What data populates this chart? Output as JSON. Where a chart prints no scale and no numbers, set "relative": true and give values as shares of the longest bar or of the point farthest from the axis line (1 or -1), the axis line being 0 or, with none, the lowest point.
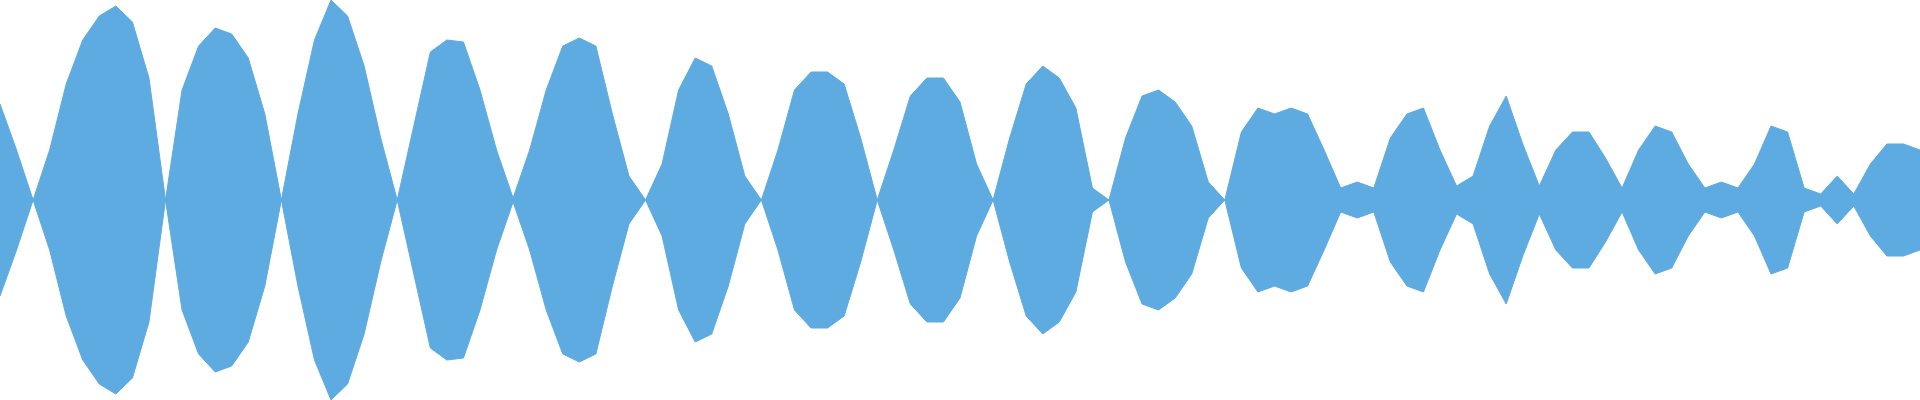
{
  "chart_data": {
    "type": "area",
    "relative": true,
    "categories": [
      null,
      null,
      null,
      null,
      null,
      null,
      null,
      null,
      null,
      null,
      null,
      null,
      null,
      null,
      null,
      null,
      null,
      null,
      null,
      null,
      null,
      null,
      null,
      null,
      null,
      null,
      null,
      null,
      null,
      null,
      null,
      null,
      null,
      null,
      null,
      null,
      null,
      null,
      null,
      null,
      null,
      null,
      null,
      null,
      null,
      null,
      null,
      null,
      null,
      null,
      null,
      null,
      null,
      null,
      null,
      null,
      null,
      null,
      null,
      null,
      null,
      null,
      null,
      null,
      null,
      null,
      null,
      null,
      null,
      null,
      null,
      null,
      null,
      null,
      null,
      null,
      null,
      null,
      null,
      null,
      null,
      null,
      null,
      null,
      null,
      null,
      null,
      null,
      null,
      null,
      null,
      null,
      null,
      null,
      null,
      null,
      null,
      null,
      null,
      null,
      null,
      null,
      null,
      null,
      null,
      null,
      null,
      null,
      null,
      null,
      null,
      null,
      null,
      null,
      null,
      null,
      null
    ],
    "series": [
      {
        "color": "#5dabe1",
        "values": [
          0.48,
          0.25,
          0,
          0.25,
          0.58,
          0.8,
          0.92,
          0.97,
          0.89,
          0.61,
          0,
          0.55,
          0.77,
          0.86,
          0.83,
          0.71,
          0.43,
          0,
          0.43,
          0.8,
          1,
          0.92,
          0.67,
          0.31,
          0,
          0.37,
          0.74,
          0.8,
          0.79,
          0.55,
          0.25,
          0.01,
          0.25,
          0.55,
          0.77,
          0.81,
          0.77,
          0.43,
          0.12,
          0,
          0.18,
          0.55,
          0.71,
          0.67,
          0.43,
          0.12,
          0,
          0.25,
          0.55,
          0.64,
          0.64,
          0.58,
          0.31,
          0,
          0.25,
          0.52,
          0.61,
          0.61,
          0.49,
          0.18,
          0,
          0.31,
          0.58,
          0.67,
          0.61,
          0.46,
          0.06,
          0,
          0.31,
          0.52,
          0.55,
          0.49,
          0.37,
          0.09,
          0,
          0.34,
          0.46,
          0.43,
          0.46,
          0.43,
          0.25,
          0.06,
          0.09,
          0.06,
          0.31,
          0.43,
          0.46,
          0.25,
          0.07,
          0.12,
          0.37,
          0.52,
          0.28,
          0.07,
          0.25,
          0.34,
          0.34,
          0.21,
          0.06,
          0.25,
          0.37,
          0.34,
          0.18,
          0.06,
          0.09,
          0.06,
          0.18,
          0.37,
          0.34,
          0.06,
          0.03,
          0.12,
          0.03,
          0.18,
          0.28,
          0.28,
          0.25
        ]
      },
      {
        "color": "#5dabe1",
        "values": [
          -0.48,
          -0.25,
          0,
          -0.25,
          -0.58,
          -0.8,
          -0.92,
          -0.97,
          -0.89,
          -0.61,
          0,
          -0.55,
          -0.77,
          -0.86,
          -0.83,
          -0.71,
          -0.43,
          0,
          -0.43,
          -0.8,
          -1,
          -0.92,
          -0.67,
          -0.31,
          0,
          -0.37,
          -0.74,
          -0.8,
          -0.79,
          -0.55,
          -0.25,
          -0.01,
          -0.25,
          -0.55,
          -0.77,
          -0.81,
          -0.77,
          -0.43,
          -0.12,
          0,
          -0.18,
          -0.55,
          -0.71,
          -0.67,
          -0.43,
          -0.12,
          0,
          -0.25,
          -0.55,
          -0.64,
          -0.64,
          -0.58,
          -0.31,
          0,
          -0.25,
          -0.52,
          -0.61,
          -0.61,
          -0.49,
          -0.18,
          0,
          -0.31,
          -0.58,
          -0.67,
          -0.61,
          -0.46,
          -0.06,
          0,
          -0.31,
          -0.52,
          -0.55,
          -0.49,
          -0.37,
          -0.09,
          0,
          -0.34,
          -0.46,
          -0.43,
          -0.46,
          -0.43,
          -0.25,
          -0.06,
          -0.09,
          -0.06,
          -0.31,
          -0.43,
          -0.46,
          -0.25,
          -0.07,
          -0.12,
          -0.37,
          -0.52,
          -0.28,
          -0.07,
          -0.25,
          -0.34,
          -0.34,
          -0.21,
          -0.06,
          -0.25,
          -0.37,
          -0.34,
          -0.18,
          -0.06,
          -0.09,
          -0.06,
          -0.18,
          -0.37,
          -0.34,
          -0.06,
          -0.03,
          -0.12,
          -0.03,
          -0.18,
          -0.28,
          -0.28,
          -0.25
        ]
      }
    ]
  }
}
